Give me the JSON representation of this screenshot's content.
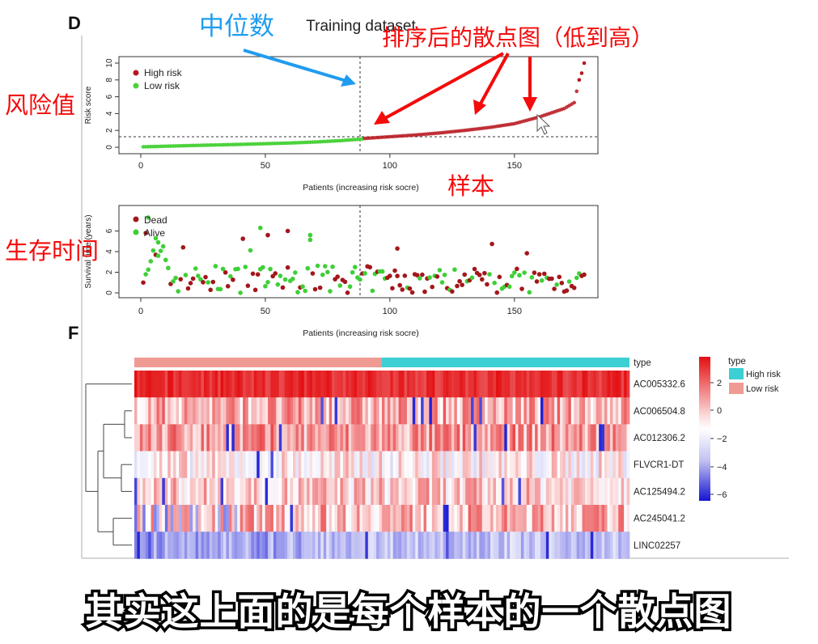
{
  "panel_labels": {
    "top": "D",
    "bottom": "F"
  },
  "chart_title": "Training dataset",
  "annotations": {
    "median": "中位数",
    "sorted": "排序后的散点图（低到高）",
    "risk_value": "风险值",
    "sample": "样本",
    "survival_time": "生存时间"
  },
  "subtitle": "其实这上面的是每个样本的一个散点图",
  "colors": {
    "high_risk": "#b8171e",
    "low_risk": "#4cd23c",
    "dead": "#a3171c",
    "alive": "#3fcf37",
    "type_high": "#3ccfd4",
    "type_low": "#f09a94",
    "heat_high": "#e30f12",
    "heat_mid": "#ffffff",
    "heat_low": "#1f1fd6",
    "annotation_red": "#f40b0b",
    "annotation_blue": "#1f9cef"
  },
  "chart_data": [
    {
      "type": "scatter",
      "name": "risk-score",
      "ylabel": "Risk score",
      "xlabel": "Patients (increasing risk socre)",
      "xlim": [
        0,
        178
      ],
      "ylim": [
        0,
        10
      ],
      "xticks": [
        0,
        50,
        100,
        150
      ],
      "yticks": [
        0,
        2,
        4,
        6,
        8,
        10
      ],
      "cutoff_x": 89,
      "cutoff_y": 1.1,
      "legend": [
        "High risk",
        "Low risk"
      ],
      "series": [
        {
          "name": "Low risk",
          "points": [
            [
              1,
              0.05
            ],
            [
              10,
              0.12
            ],
            [
              20,
              0.2
            ],
            [
              30,
              0.27
            ],
            [
              40,
              0.34
            ],
            [
              50,
              0.42
            ],
            [
              60,
              0.5
            ],
            [
              70,
              0.62
            ],
            [
              80,
              0.78
            ],
            [
              89,
              0.98
            ]
          ]
        },
        {
          "name": "High risk",
          "points": [
            [
              90,
              1.05
            ],
            [
              100,
              1.25
            ],
            [
              110,
              1.45
            ],
            [
              120,
              1.7
            ],
            [
              130,
              2.0
            ],
            [
              140,
              2.35
            ],
            [
              150,
              2.8
            ],
            [
              155,
              3.2
            ],
            [
              160,
              3.6
            ],
            [
              165,
              4.1
            ],
            [
              170,
              4.6
            ],
            [
              174,
              5.3
            ],
            [
              176,
              8.0
            ],
            [
              177,
              8.8
            ],
            [
              178,
              10.0
            ]
          ]
        }
      ]
    },
    {
      "type": "scatter",
      "name": "survival-time",
      "ylabel": "Survival time (years)",
      "xlabel": "Patients (increasing risk socre)",
      "xlim": [
        0,
        178
      ],
      "ylim": [
        0,
        8
      ],
      "xticks": [
        0,
        50,
        100,
        150
      ],
      "yticks": [
        0,
        2,
        4,
        6
      ],
      "cutoff_x": 89,
      "legend": [
        "Dead",
        "Alive"
      ]
    },
    {
      "type": "heatmap",
      "name": "expression-heatmap",
      "rows": [
        "AC005332.6",
        "AC006504.8",
        "AC012306.2",
        "FLVCR1-DT",
        "AC125494.2",
        "AC245041.2",
        "LINC02257"
      ],
      "row_means": [
        2.4,
        1.0,
        1.2,
        0.1,
        0.6,
        0.9,
        -1.6
      ],
      "annotation_label": "type",
      "colorbar_ticks": [
        "2",
        "0",
        "−2",
        "−4",
        "−6"
      ],
      "legend_title": "type",
      "legend": [
        "High risk",
        "Low risk"
      ],
      "columns": 178,
      "low_risk_fraction": 0.5
    }
  ]
}
